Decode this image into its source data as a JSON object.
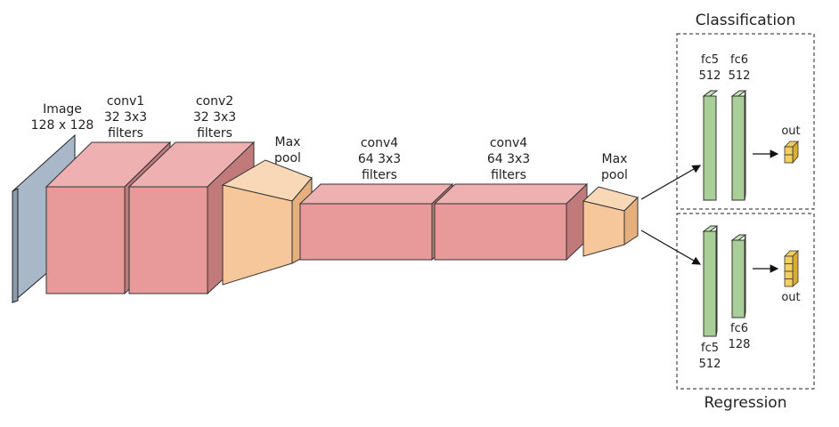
{
  "labels": {
    "input": [
      "Image",
      "128 x 128"
    ],
    "conv1": [
      "conv1",
      "32 3x3",
      "filters"
    ],
    "conv2": [
      "conv2",
      "32 3x3",
      "filters"
    ],
    "pool1": [
      "Max",
      "pool"
    ],
    "conv4a": [
      "conv4",
      "64 3x3",
      "filters"
    ],
    "conv4b": [
      "conv4",
      "64 3x3",
      "filters"
    ],
    "pool2": [
      "Max",
      "pool"
    ],
    "classification_title": "Classification",
    "regression_title": "Regression",
    "cls_fc5": [
      "fc5",
      "512"
    ],
    "cls_fc6": [
      "fc6",
      "512"
    ],
    "cls_out": "out",
    "reg_fc5": [
      "fc5",
      "512"
    ],
    "reg_fc6": [
      "fc6",
      "128"
    ],
    "reg_out": "out"
  },
  "colors": {
    "image_front": "#a8b8c9",
    "image_side": "#8a9bb0",
    "conv_front": "#e89a9a",
    "conv_top": "#eeb0b0",
    "conv_side": "#c07a7a",
    "pool_front": "#f6c79a",
    "pool_top": "#f9d8b8",
    "pool_side": "#e6b07e",
    "fc_front": "#a9cf98",
    "fc_top": "#c7e2b8",
    "fc_side": "#8bb67b",
    "out_front": "#f3cf62",
    "out_side": "#d9ac32"
  }
}
